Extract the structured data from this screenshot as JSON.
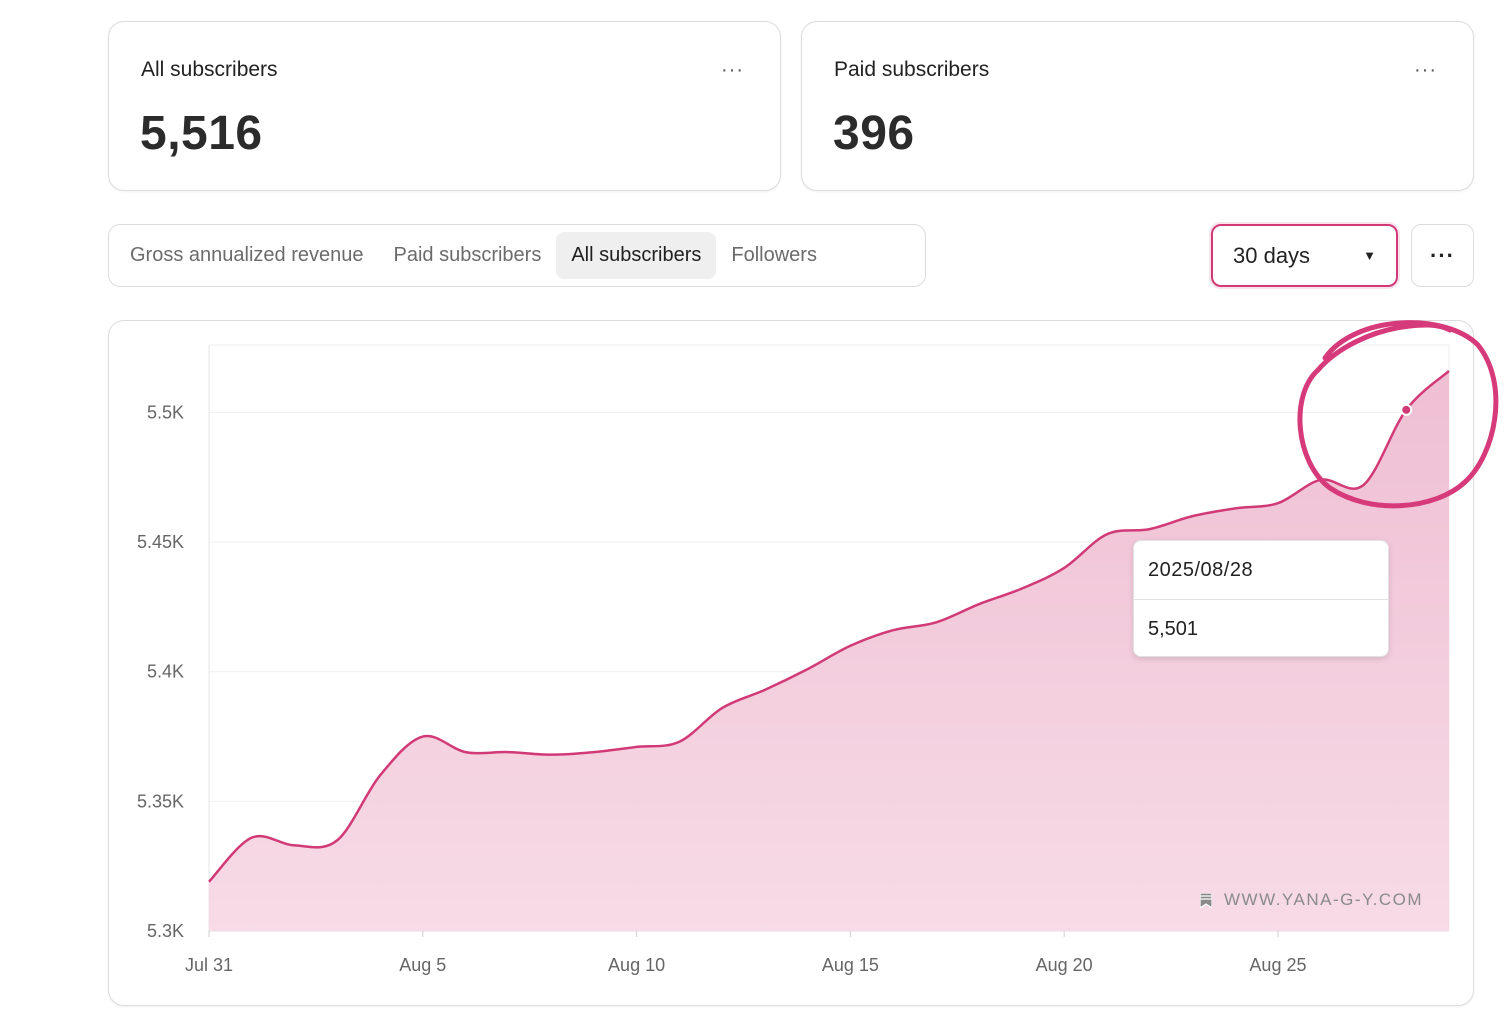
{
  "stats": [
    {
      "label": "All subscribers",
      "value": "5,516",
      "menu": "···"
    },
    {
      "label": "Paid subscribers",
      "value": "396",
      "menu": "···"
    }
  ],
  "tabs": [
    {
      "label": "Gross annualized revenue",
      "active": false
    },
    {
      "label": "Paid subscribers",
      "active": false
    },
    {
      "label": "All subscribers",
      "active": true
    },
    {
      "label": "Followers",
      "active": false
    }
  ],
  "range": {
    "selected": "30 days",
    "caret": "▼"
  },
  "more_menu": "···",
  "tooltip": {
    "date": "2025/08/28",
    "value": "5,501"
  },
  "watermark": {
    "text": "WWW.YANA-G-Y.COM",
    "icon": "bookmark-icon"
  },
  "colors": {
    "accent": "#d13a76",
    "fill_top": "#efbfd3",
    "fill_bottom": "#f7dbe6",
    "annotation": "#d63a7b"
  },
  "chart_data": {
    "type": "area",
    "title": "",
    "xlabel": "",
    "ylabel": "",
    "x_tick_labels": [
      "Jul 31",
      "Aug 5",
      "Aug 10",
      "Aug 15",
      "Aug 20",
      "Aug 25"
    ],
    "y_tick_labels": [
      "5.3K",
      "5.35K",
      "5.4K",
      "5.45K",
      "5.5K"
    ],
    "y_ticks": [
      5300,
      5350,
      5400,
      5450,
      5500
    ],
    "ylim": [
      5300,
      5526
    ],
    "x": [
      "2025-07-31",
      "2025-08-01",
      "2025-08-02",
      "2025-08-03",
      "2025-08-04",
      "2025-08-05",
      "2025-08-06",
      "2025-08-07",
      "2025-08-08",
      "2025-08-09",
      "2025-08-10",
      "2025-08-11",
      "2025-08-12",
      "2025-08-13",
      "2025-08-14",
      "2025-08-15",
      "2025-08-16",
      "2025-08-17",
      "2025-08-18",
      "2025-08-19",
      "2025-08-20",
      "2025-08-21",
      "2025-08-22",
      "2025-08-23",
      "2025-08-24",
      "2025-08-25",
      "2025-08-26",
      "2025-08-27",
      "2025-08-28",
      "2025-08-29"
    ],
    "values": [
      5319,
      5336,
      5333,
      5335,
      5360,
      5375,
      5369,
      5369,
      5368,
      5369,
      5371,
      5373,
      5386,
      5393,
      5401,
      5410,
      5416,
      5419,
      5426,
      5432,
      5440,
      5453,
      5455,
      5460,
      5463,
      5465,
      5474,
      5472,
      5501,
      5516
    ],
    "grid": true,
    "highlight": {
      "x": "2025-08-28",
      "y": 5501
    }
  }
}
